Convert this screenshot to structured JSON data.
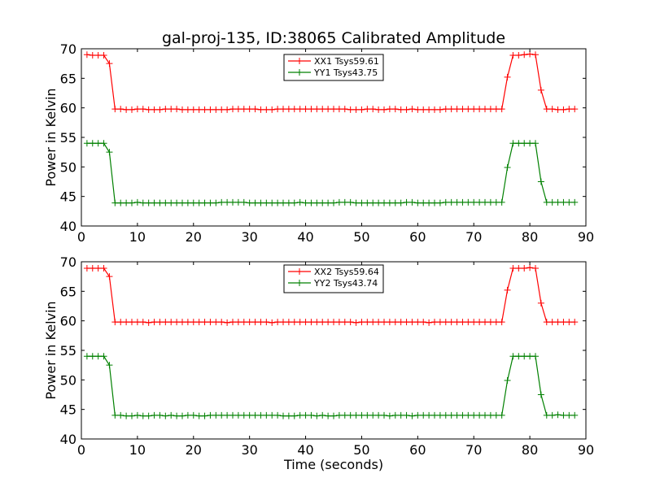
{
  "figure": {
    "title": "gal-proj-135, ID:38065 Calibrated Amplitude",
    "xlabel": "Time (seconds)"
  },
  "chart_data": [
    {
      "type": "line",
      "title": "gal-proj-135, ID:38065 Calibrated Amplitude",
      "xlabel": "",
      "ylabel": "Power in Kelvin",
      "xlim": [
        0,
        90
      ],
      "ylim": [
        40,
        70
      ],
      "xticks": [
        0,
        10,
        20,
        30,
        40,
        50,
        60,
        70,
        80,
        90
      ],
      "yticks": [
        40,
        45,
        50,
        55,
        60,
        65,
        70
      ],
      "grid": false,
      "legend_position": "top-center",
      "x": [
        1,
        2,
        3,
        4,
        5,
        6,
        7,
        8,
        9,
        10,
        11,
        12,
        13,
        14,
        15,
        16,
        17,
        18,
        19,
        20,
        21,
        22,
        23,
        24,
        25,
        26,
        27,
        28,
        29,
        30,
        31,
        32,
        33,
        34,
        35,
        36,
        37,
        38,
        39,
        40,
        41,
        42,
        43,
        44,
        45,
        46,
        47,
        48,
        49,
        50,
        51,
        52,
        53,
        54,
        55,
        56,
        57,
        58,
        59,
        60,
        61,
        62,
        63,
        64,
        65,
        66,
        67,
        68,
        69,
        70,
        71,
        72,
        73,
        74,
        75,
        76,
        77,
        78,
        79,
        80,
        81,
        82,
        83,
        84,
        85,
        86,
        87,
        88
      ],
      "series": [
        {
          "name": "XX1 Tsys59.61",
          "color": "#ff0000",
          "values": [
            69.0,
            68.9,
            68.9,
            68.9,
            67.5,
            59.8,
            59.8,
            59.7,
            59.7,
            59.8,
            59.8,
            59.7,
            59.7,
            59.7,
            59.8,
            59.8,
            59.8,
            59.7,
            59.7,
            59.7,
            59.7,
            59.7,
            59.7,
            59.7,
            59.7,
            59.7,
            59.8,
            59.8,
            59.8,
            59.8,
            59.8,
            59.7,
            59.7,
            59.7,
            59.8,
            59.8,
            59.8,
            59.8,
            59.8,
            59.8,
            59.8,
            59.8,
            59.8,
            59.8,
            59.8,
            59.8,
            59.8,
            59.7,
            59.7,
            59.7,
            59.8,
            59.8,
            59.7,
            59.7,
            59.8,
            59.8,
            59.7,
            59.7,
            59.8,
            59.7,
            59.7,
            59.7,
            59.7,
            59.7,
            59.8,
            59.8,
            59.8,
            59.8,
            59.8,
            59.8,
            59.8,
            59.8,
            59.8,
            59.8,
            59.8,
            65.2,
            68.9,
            68.9,
            69.0,
            69.1,
            69.0,
            63.0,
            59.8,
            59.8,
            59.7,
            59.7,
            59.8,
            59.8
          ]
        },
        {
          "name": "YY1 Tsys43.75",
          "color": "#008000",
          "values": [
            54.0,
            54.0,
            54.0,
            54.0,
            52.5,
            43.9,
            43.9,
            43.9,
            43.9,
            44.0,
            43.9,
            43.9,
            43.9,
            43.9,
            43.9,
            43.9,
            43.9,
            43.9,
            43.9,
            43.9,
            43.9,
            43.9,
            43.9,
            43.9,
            44.0,
            44.0,
            44.0,
            44.0,
            44.0,
            43.9,
            43.9,
            43.9,
            43.9,
            43.9,
            43.9,
            43.9,
            43.9,
            43.9,
            44.0,
            43.9,
            43.9,
            43.9,
            43.9,
            43.9,
            43.9,
            44.0,
            44.0,
            44.0,
            43.9,
            43.9,
            43.9,
            43.9,
            43.9,
            43.9,
            43.9,
            43.9,
            43.9,
            44.0,
            44.0,
            43.9,
            43.9,
            43.9,
            43.9,
            43.9,
            44.0,
            44.0,
            44.0,
            44.0,
            44.0,
            44.0,
            44.0,
            44.0,
            44.0,
            44.0,
            44.0,
            49.9,
            54.0,
            54.0,
            54.0,
            54.0,
            54.0,
            47.5,
            44.0,
            44.0,
            44.0,
            44.0,
            44.0,
            44.0
          ]
        }
      ]
    },
    {
      "type": "line",
      "title": "",
      "xlabel": "Time (seconds)",
      "ylabel": "Power in Kelvin",
      "xlim": [
        0,
        90
      ],
      "ylim": [
        40,
        70
      ],
      "xticks": [
        0,
        10,
        20,
        30,
        40,
        50,
        60,
        70,
        80,
        90
      ],
      "yticks": [
        40,
        45,
        50,
        55,
        60,
        65,
        70
      ],
      "grid": false,
      "legend_position": "top-center",
      "x": [
        1,
        2,
        3,
        4,
        5,
        6,
        7,
        8,
        9,
        10,
        11,
        12,
        13,
        14,
        15,
        16,
        17,
        18,
        19,
        20,
        21,
        22,
        23,
        24,
        25,
        26,
        27,
        28,
        29,
        30,
        31,
        32,
        33,
        34,
        35,
        36,
        37,
        38,
        39,
        40,
        41,
        42,
        43,
        44,
        45,
        46,
        47,
        48,
        49,
        50,
        51,
        52,
        53,
        54,
        55,
        56,
        57,
        58,
        59,
        60,
        61,
        62,
        63,
        64,
        65,
        66,
        67,
        68,
        69,
        70,
        71,
        72,
        73,
        74,
        75,
        76,
        77,
        78,
        79,
        80,
        81,
        82,
        83,
        84,
        85,
        86,
        87,
        88
      ],
      "series": [
        {
          "name": "XX2 Tsys59.64",
          "color": "#ff0000",
          "values": [
            68.9,
            68.9,
            68.9,
            68.9,
            67.5,
            59.8,
            59.8,
            59.8,
            59.8,
            59.8,
            59.8,
            59.7,
            59.8,
            59.8,
            59.8,
            59.8,
            59.8,
            59.8,
            59.8,
            59.8,
            59.8,
            59.8,
            59.8,
            59.8,
            59.8,
            59.7,
            59.8,
            59.8,
            59.8,
            59.8,
            59.8,
            59.8,
            59.8,
            59.7,
            59.8,
            59.8,
            59.8,
            59.8,
            59.8,
            59.8,
            59.8,
            59.8,
            59.8,
            59.8,
            59.8,
            59.8,
            59.8,
            59.8,
            59.7,
            59.8,
            59.8,
            59.8,
            59.8,
            59.8,
            59.8,
            59.8,
            59.8,
            59.8,
            59.8,
            59.8,
            59.8,
            59.7,
            59.8,
            59.8,
            59.8,
            59.8,
            59.8,
            59.8,
            59.8,
            59.8,
            59.8,
            59.8,
            59.8,
            59.8,
            59.8,
            65.2,
            68.9,
            68.9,
            68.9,
            69.0,
            68.9,
            63.0,
            59.8,
            59.8,
            59.8,
            59.8,
            59.8,
            59.8
          ]
        },
        {
          "name": "YY2 Tsys43.74",
          "color": "#008000",
          "values": [
            54.0,
            54.0,
            54.0,
            54.0,
            52.5,
            44.0,
            44.0,
            43.9,
            43.9,
            44.0,
            43.9,
            43.9,
            44.0,
            44.0,
            43.9,
            44.0,
            43.9,
            43.9,
            44.0,
            44.0,
            43.9,
            43.9,
            44.0,
            44.0,
            44.0,
            44.0,
            44.0,
            44.0,
            44.0,
            44.0,
            44.0,
            44.0,
            44.0,
            44.0,
            44.0,
            43.9,
            43.9,
            43.9,
            44.0,
            44.0,
            44.0,
            43.9,
            44.0,
            43.9,
            43.9,
            44.0,
            44.0,
            44.0,
            44.0,
            44.0,
            44.0,
            44.0,
            44.0,
            44.0,
            43.9,
            44.0,
            44.0,
            44.0,
            43.9,
            44.0,
            44.0,
            44.0,
            44.0,
            44.0,
            44.0,
            44.0,
            44.0,
            44.0,
            44.0,
            44.0,
            44.0,
            44.0,
            44.0,
            44.0,
            44.0,
            49.9,
            54.0,
            54.0,
            54.0,
            54.0,
            54.0,
            47.5,
            44.0,
            44.0,
            44.1,
            44.0,
            44.0,
            44.0
          ]
        }
      ]
    }
  ]
}
